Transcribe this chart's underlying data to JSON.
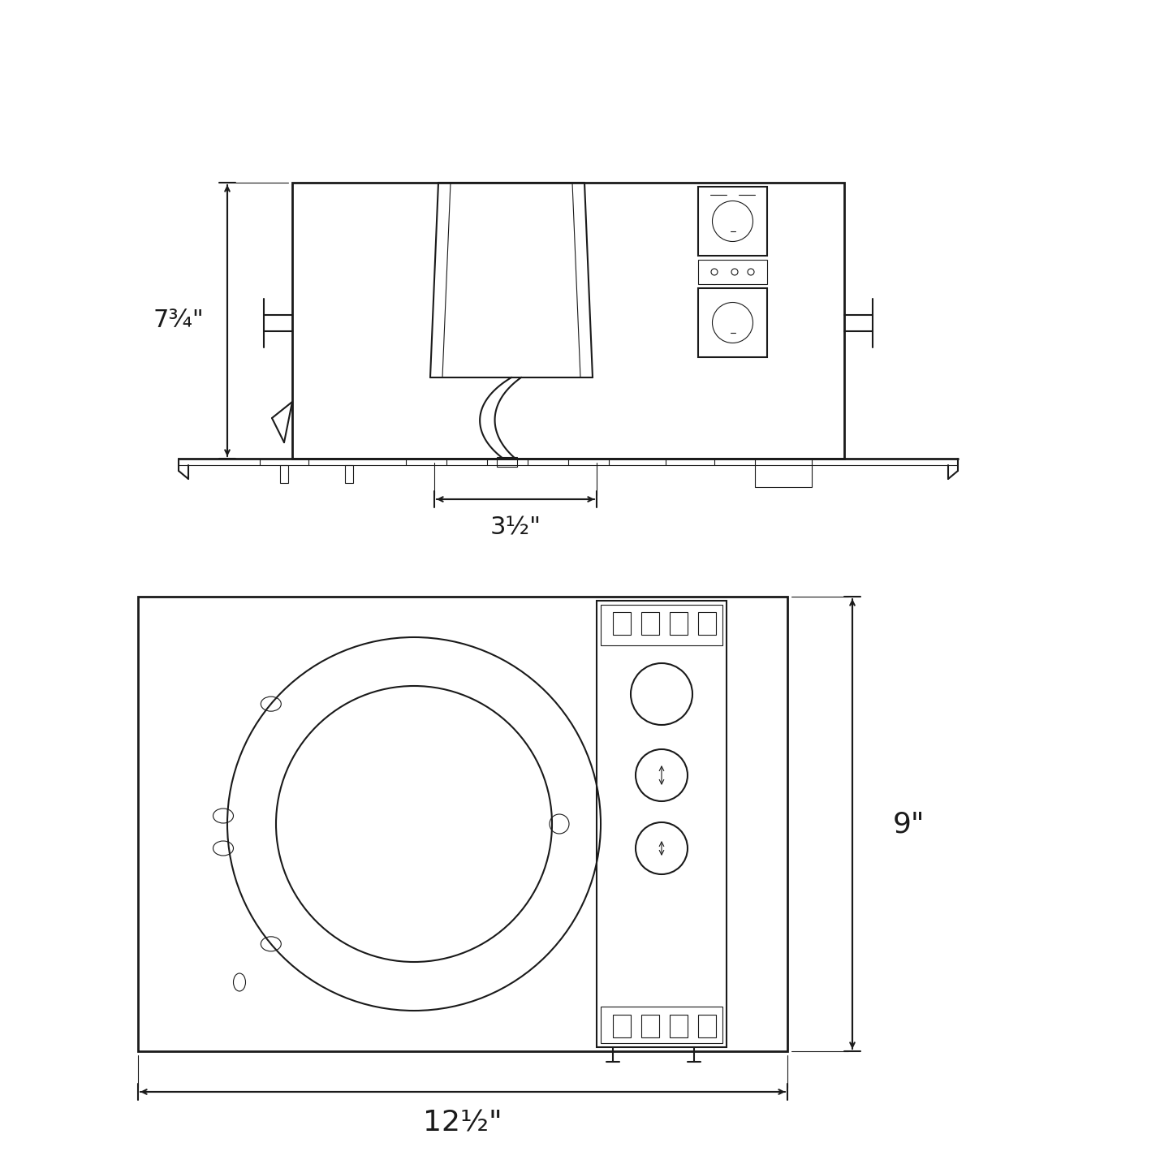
{
  "bg_color": "#ffffff",
  "line_color": "#1a1a1a",
  "lw": 1.5,
  "lw_thin": 0.8,
  "lw_thick": 2.0,
  "dim_color": "#1a1a1a",
  "fig_width": 14.45,
  "fig_height": 14.45,
  "label_7_34": "7¾\"",
  "label_3_12": "3½\"",
  "label_9": "9\"",
  "label_12_12": "12½\""
}
